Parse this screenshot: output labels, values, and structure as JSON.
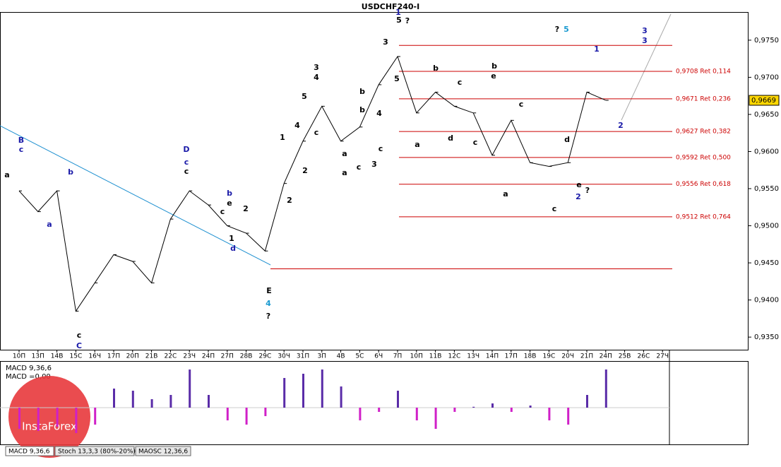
{
  "chart_data": {
    "type": "line",
    "title": "USDCHF240-I",
    "categories": [
      "10П",
      "13П",
      "14В",
      "15С",
      "16Ч",
      "17П",
      "20П",
      "21В",
      "22С",
      "23Ч",
      "24П",
      "27П",
      "28В",
      "29С",
      "30Ч",
      "31П",
      "3П",
      "4В",
      "5С",
      "6Ч",
      "7П",
      "10П",
      "11В",
      "12С",
      "13Ч",
      "14П",
      "17П",
      "18В",
      "19С",
      "20Ч",
      "21П",
      "24П",
      "25В",
      "26С",
      "27Ч"
    ],
    "series": [
      {
        "name": "USDCHF240-I",
        "color": "#000000",
        "values": [
          0.9547,
          0.9519,
          0.9547,
          0.9385,
          0.9423,
          0.9461,
          0.9452,
          0.9423,
          0.9509,
          0.9547,
          0.9528,
          0.95,
          0.949,
          0.9466,
          0.9557,
          0.9614,
          0.9661,
          0.9614,
          0.9633,
          0.969,
          0.9728,
          0.9652,
          0.968,
          0.9661,
          0.9652,
          0.9595,
          0.9642,
          0.9585,
          0.958,
          0.9585,
          0.968,
          0.9669,
          null,
          null,
          null
        ]
      }
    ],
    "ylim": [
      0.9333,
      0.9787
    ],
    "yticks": [
      {
        "value": 0.935,
        "label": "0,9350"
      },
      {
        "value": 0.94,
        "label": "0,9400"
      },
      {
        "value": 0.945,
        "label": "0,9450"
      },
      {
        "value": 0.95,
        "label": "0,9500"
      },
      {
        "value": 0.955,
        "label": "0,9550"
      },
      {
        "value": 0.96,
        "label": "0,9600"
      },
      {
        "value": 0.965,
        "label": "0,9650"
      },
      {
        "value": 0.97,
        "label": "0,9700"
      },
      {
        "value": 0.975,
        "label": "0,9750"
      }
    ],
    "current_price": {
      "value": 0.9669,
      "label": "0,9669"
    },
    "fib_levels": [
      {
        "value": 0.9708,
        "label": "0,9708 Ret 0,114"
      },
      {
        "value": 0.9671,
        "label": "0,9671 Ret 0,236"
      },
      {
        "value": 0.9627,
        "label": "0,9627 Ret 0,382"
      },
      {
        "value": 0.9592,
        "label": "0,9592 Ret 0,500"
      },
      {
        "value": 0.9556,
        "label": "0,9556 Ret 0,618"
      },
      {
        "value": 0.9512,
        "label": "0,9512 Ret 0,764"
      }
    ],
    "levels": [
      0.9743,
      0.9442
    ],
    "annotations": [
      "B",
      "c",
      "b",
      "a",
      "a",
      "c",
      "C",
      "D",
      "c",
      "c",
      "b",
      "e",
      "c",
      "d",
      "1",
      "2",
      "3",
      "4",
      "5",
      "c",
      "E",
      "4",
      "?",
      "1",
      "2",
      "3",
      "5",
      "3",
      "4",
      "b",
      "c",
      "a",
      "a",
      "b",
      "c",
      "2",
      "4",
      "1",
      "5",
      "?",
      "?",
      "5",
      "b",
      "e",
      "a",
      "b",
      "c",
      "d",
      "c",
      "a",
      "c",
      "d",
      "e",
      "?",
      "2",
      "1",
      "3",
      "3",
      "2",
      "c"
    ],
    "macd": {
      "label": "MACD 9,36,6",
      "value_label": "MACD =0,00",
      "ylim": [
        -1,
        1
      ],
      "values": [
        -0.5,
        -0.55,
        -0.45,
        -0.6,
        -0.4,
        0.45,
        0.4,
        0.2,
        0.3,
        0.9,
        0.3,
        -0.3,
        -0.4,
        -0.2,
        0.7,
        0.8,
        0.9,
        0.5,
        -0.3,
        -0.1,
        0.4,
        -0.3,
        -0.5,
        -0.1,
        0.02,
        0.1,
        -0.1,
        0.05,
        -0.3,
        -0.4,
        0.3,
        0.9,
        null,
        null,
        null
      ]
    },
    "tabs": [
      "MACD 9,36,6",
      "Stoch 13,3,3 (80%-20%)",
      "MAOSC 12,36,6"
    ],
    "watermark": "InstaForex"
  }
}
